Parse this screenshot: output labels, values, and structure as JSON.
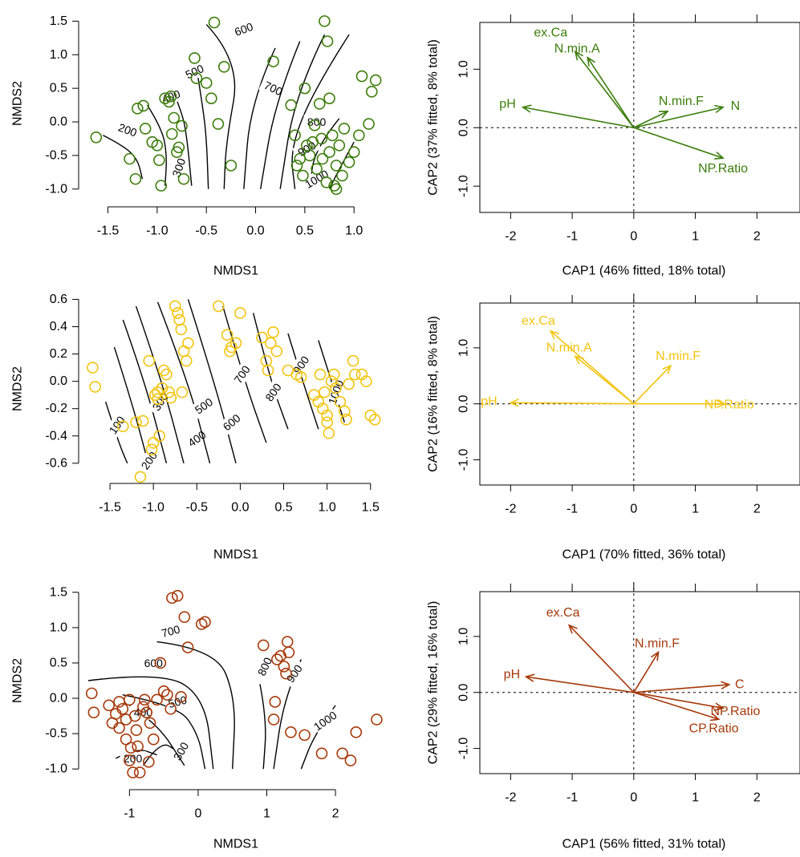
{
  "chart_data": [
    {
      "type": "scatter",
      "panel": "nmds",
      "color": "#3a7d0a",
      "xlabel": "NMDS1",
      "ylabel": "NMDS2",
      "xlim": [
        -1.7,
        1.3
      ],
      "ylim": [
        -1.05,
        1.6
      ],
      "xticks": [
        "-1.5",
        "-1.0",
        "-0.5",
        "0.0",
        "0.5",
        "1.0"
      ],
      "xtick_values": [
        -1.5,
        -1.0,
        -0.5,
        0.0,
        0.5,
        1.0
      ],
      "yticks": [
        "-1.0",
        "-0.5",
        "0.0",
        "0.5",
        "1.0",
        "1.5"
      ],
      "ytick_values": [
        -1.0,
        -0.5,
        0.0,
        0.5,
        1.0,
        1.5
      ],
      "points": [
        [
          -1.62,
          -0.23
        ],
        [
          -1.28,
          -0.55
        ],
        [
          -1.22,
          -0.85
        ],
        [
          -1.2,
          0.2
        ],
        [
          -1.14,
          0.24
        ],
        [
          -1.12,
          -0.1
        ],
        [
          -1.05,
          -0.3
        ],
        [
          -1.0,
          -0.35
        ],
        [
          -0.98,
          -0.57
        ],
        [
          -0.96,
          -0.95
        ],
        [
          -0.92,
          0.35
        ],
        [
          -0.88,
          0.3
        ],
        [
          -0.86,
          0.38
        ],
        [
          -0.85,
          -0.18
        ],
        [
          -0.83,
          0.06
        ],
        [
          -0.8,
          -0.45
        ],
        [
          -0.78,
          -0.38
        ],
        [
          -0.75,
          -0.06
        ],
        [
          -0.73,
          -0.85
        ],
        [
          -0.62,
          0.95
        ],
        [
          -0.6,
          0.65
        ],
        [
          -0.5,
          0.58
        ],
        [
          -0.45,
          0.35
        ],
        [
          -0.42,
          1.48
        ],
        [
          -0.38,
          -0.03
        ],
        [
          -0.32,
          0.82
        ],
        [
          -0.25,
          -0.65
        ],
        [
          0.18,
          0.9
        ],
        [
          0.36,
          0.25
        ],
        [
          0.4,
          -0.2
        ],
        [
          0.42,
          -0.65
        ],
        [
          0.45,
          -0.55
        ],
        [
          0.48,
          -0.8
        ],
        [
          0.5,
          0.5
        ],
        [
          0.52,
          -0.35
        ],
        [
          0.55,
          -0.5
        ],
        [
          0.58,
          -0.3
        ],
        [
          0.6,
          -0.05
        ],
        [
          0.62,
          -0.7
        ],
        [
          0.65,
          0.27
        ],
        [
          0.67,
          -0.25
        ],
        [
          0.68,
          -0.55
        ],
        [
          0.7,
          1.5
        ],
        [
          0.72,
          -0.9
        ],
        [
          0.73,
          1.2
        ],
        [
          0.75,
          -0.45
        ],
        [
          0.75,
          0.35
        ],
        [
          0.78,
          -0.2
        ],
        [
          0.8,
          -0.95
        ],
        [
          0.82,
          -0.65
        ],
        [
          0.82,
          -1.0
        ],
        [
          0.85,
          -0.35
        ],
        [
          0.88,
          -0.8
        ],
        [
          0.9,
          -0.1
        ],
        [
          0.95,
          -0.6
        ],
        [
          1.0,
          -0.45
        ],
        [
          1.05,
          -0.2
        ],
        [
          1.08,
          0.68
        ],
        [
          1.15,
          -0.03
        ],
        [
          1.18,
          0.45
        ],
        [
          1.22,
          0.62
        ]
      ],
      "contour_labels": [
        "200",
        "300",
        "400",
        "500",
        "600",
        "700",
        "800",
        "900",
        "1000"
      ]
    },
    {
      "type": "biplot",
      "panel": "cap",
      "color": "#3a7d0a",
      "xlabel": "CAP1 (46% fitted, 18% total)",
      "ylabel": "CAP2 (37% fitted, 8% total)",
      "xlim": [
        -2.5,
        2.7
      ],
      "ylim": [
        -1.45,
        1.8
      ],
      "xticks": [
        "-2",
        "-1",
        "0",
        "1",
        "2"
      ],
      "xtick_values": [
        -2,
        -1,
        0,
        1,
        2
      ],
      "yticks": [
        "-1.0",
        "0.0",
        "1.0"
      ],
      "ytick_values": [
        -1.0,
        0.0,
        1.0
      ],
      "vectors": [
        {
          "label": "ex.Ca",
          "x": -0.95,
          "y": 1.3,
          "lx": -1.35,
          "ly": 1.62
        },
        {
          "label": "N.min.A",
          "x": -0.75,
          "y": 1.2,
          "lx": -0.92,
          "ly": 1.35
        },
        {
          "label": "pH",
          "x": -1.8,
          "y": 0.35,
          "lx": -2.05,
          "ly": 0.4
        },
        {
          "label": "N.min.F",
          "x": 0.55,
          "y": 0.28,
          "lx": 0.77,
          "ly": 0.45
        },
        {
          "label": "N",
          "x": 1.45,
          "y": 0.35,
          "lx": 1.65,
          "ly": 0.37
        },
        {
          "label": "NP.Ratio",
          "x": 1.45,
          "y": -0.52,
          "lx": 1.45,
          "ly": -0.7
        }
      ]
    },
    {
      "type": "scatter",
      "panel": "nmds",
      "color": "#f2c40f",
      "xlabel": "NMDS1",
      "ylabel": "NMDS2",
      "xlim": [
        -1.75,
        1.65
      ],
      "ylim": [
        -0.73,
        0.62
      ],
      "xticks": [
        "-1.5",
        "-1.0",
        "-0.5",
        "0.0",
        "0.5",
        "1.0",
        "1.5"
      ],
      "xtick_values": [
        -1.5,
        -1.0,
        -0.5,
        0.0,
        0.5,
        1.0,
        1.5
      ],
      "yticks": [
        "-0.6",
        "-0.4",
        "-0.2",
        "0.0",
        "0.2",
        "0.4",
        "0.6"
      ],
      "ytick_values": [
        -0.6,
        -0.4,
        -0.2,
        0.0,
        0.2,
        0.4,
        0.6
      ],
      "points": [
        [
          -1.7,
          0.1
        ],
        [
          -1.67,
          -0.04
        ],
        [
          -1.35,
          -0.33
        ],
        [
          -1.2,
          -0.3
        ],
        [
          -1.15,
          -0.7
        ],
        [
          -1.12,
          -0.29
        ],
        [
          -1.05,
          0.15
        ],
        [
          -1.02,
          -0.5
        ],
        [
          -1.0,
          -0.45
        ],
        [
          -0.98,
          -0.1
        ],
        [
          -0.95,
          -0.08
        ],
        [
          -0.95,
          -0.13
        ],
        [
          -0.93,
          -0.4
        ],
        [
          -0.9,
          -0.05
        ],
        [
          -0.88,
          0.08
        ],
        [
          -0.85,
          0.05
        ],
        [
          -0.82,
          -0.08
        ],
        [
          -0.8,
          -0.12
        ],
        [
          -0.75,
          0.55
        ],
        [
          -0.72,
          0.5
        ],
        [
          -0.7,
          0.45
        ],
        [
          -0.68,
          0.38
        ],
        [
          -0.67,
          -0.08
        ],
        [
          -0.65,
          0.22
        ],
        [
          -0.62,
          0.15
        ],
        [
          -0.6,
          0.28
        ],
        [
          -0.25,
          0.55
        ],
        [
          -0.15,
          0.34
        ],
        [
          -0.12,
          0.22
        ],
        [
          -0.1,
          0.25
        ],
        [
          -0.05,
          0.28
        ],
        [
          0.0,
          0.5
        ],
        [
          0.25,
          0.32
        ],
        [
          0.3,
          0.15
        ],
        [
          0.32,
          0.08
        ],
        [
          0.35,
          0.28
        ],
        [
          0.38,
          0.36
        ],
        [
          0.42,
          0.22
        ],
        [
          0.55,
          0.08
        ],
        [
          0.65,
          0.05
        ],
        [
          0.7,
          0.03
        ],
        [
          0.85,
          -0.1
        ],
        [
          0.9,
          -0.15
        ],
        [
          0.92,
          0.05
        ],
        [
          0.95,
          -0.2
        ],
        [
          0.97,
          -0.08
        ],
        [
          1.0,
          -0.25
        ],
        [
          1.0,
          -0.3
        ],
        [
          1.02,
          -0.38
        ],
        [
          1.05,
          0.0
        ],
        [
          1.08,
          0.05
        ],
        [
          1.1,
          -0.05
        ],
        [
          1.15,
          -0.15
        ],
        [
          1.2,
          -0.22
        ],
        [
          1.22,
          -0.28
        ],
        [
          1.25,
          -0.02
        ],
        [
          1.3,
          0.15
        ],
        [
          1.32,
          0.05
        ],
        [
          1.4,
          0.05
        ],
        [
          1.45,
          0.0
        ],
        [
          1.5,
          -0.25
        ],
        [
          1.55,
          -0.28
        ]
      ],
      "contour_labels": [
        "100",
        "200",
        "300",
        "400",
        "500",
        "600",
        "700",
        "800",
        "900",
        "1000"
      ]
    },
    {
      "type": "biplot",
      "panel": "cap",
      "color": "#f2c40f",
      "xlabel": "CAP1 (70% fitted, 36% total)",
      "ylabel": "CAP2 (16% fitted, 8% total)",
      "xlim": [
        -2.5,
        2.7
      ],
      "ylim": [
        -1.45,
        1.8
      ],
      "xticks": [
        "-2",
        "-1",
        "0",
        "1",
        "2"
      ],
      "xtick_values": [
        -2,
        -1,
        0,
        1,
        2
      ],
      "yticks": [
        "-1.0",
        "0.0",
        "1.0"
      ],
      "ytick_values": [
        -1.0,
        0.0,
        1.0
      ],
      "vectors": [
        {
          "label": "ex.Ca",
          "x": -1.35,
          "y": 1.3,
          "lx": -1.55,
          "ly": 1.48
        },
        {
          "label": "N.min.A",
          "x": -0.95,
          "y": 0.85,
          "lx": -1.05,
          "ly": 1.0
        },
        {
          "label": "N.min.F",
          "x": 0.6,
          "y": 0.68,
          "lx": 0.72,
          "ly": 0.85
        },
        {
          "label": "pH",
          "x": -2.0,
          "y": 0.02,
          "lx": -2.35,
          "ly": 0.04
        },
        {
          "label": "NP.Ratio",
          "x": 1.48,
          "y": 0.0,
          "lx": 1.55,
          "ly": -0.02
        }
      ]
    },
    {
      "type": "scatter",
      "panel": "nmds",
      "color": "#a6390a",
      "xlabel": "NMDS1",
      "ylabel": "NMDS2",
      "xlim": [
        -1.6,
        2.7
      ],
      "ylim": [
        -1.1,
        1.6
      ],
      "xticks": [
        "-1",
        "0",
        "1",
        "2"
      ],
      "xtick_values": [
        -1,
        0,
        1,
        2
      ],
      "yticks": [
        "-1.0",
        "-0.5",
        "0.0",
        "0.5",
        "1.0",
        "1.5"
      ],
      "ytick_values": [
        -1.0,
        -0.5,
        0.0,
        0.5,
        1.0,
        1.5
      ],
      "points": [
        [
          -1.55,
          0.07
        ],
        [
          -1.52,
          -0.2
        ],
        [
          -1.3,
          -0.1
        ],
        [
          -1.25,
          -0.35
        ],
        [
          -1.2,
          -0.22
        ],
        [
          -1.15,
          -0.05
        ],
        [
          -1.15,
          -0.42
        ],
        [
          -1.1,
          -0.15
        ],
        [
          -1.05,
          -0.3
        ],
        [
          -1.05,
          -0.58
        ],
        [
          -1.0,
          -0.02
        ],
        [
          -1.0,
          -0.88
        ],
        [
          -0.98,
          -0.7
        ],
        [
          -0.95,
          -1.05
        ],
        [
          -0.92,
          -0.25
        ],
        [
          -0.9,
          -0.45
        ],
        [
          -0.88,
          -0.68
        ],
        [
          -0.85,
          -1.05
        ],
        [
          -0.8,
          -0.12
        ],
        [
          -0.78,
          -0.02
        ],
        [
          -0.75,
          -0.2
        ],
        [
          -0.72,
          -0.9
        ],
        [
          -0.7,
          -0.35
        ],
        [
          -0.65,
          -0.58
        ],
        [
          -0.6,
          -0.02
        ],
        [
          -0.55,
          0.5
        ],
        [
          -0.5,
          0.1
        ],
        [
          -0.45,
          0.05
        ],
        [
          -0.4,
          -0.15
        ],
        [
          -0.38,
          1.42
        ],
        [
          -0.3,
          1.45
        ],
        [
          -0.25,
          0.02
        ],
        [
          -0.2,
          1.15
        ],
        [
          -0.15,
          0.72
        ],
        [
          0.05,
          1.05
        ],
        [
          0.1,
          1.08
        ],
        [
          0.95,
          0.75
        ],
        [
          1.1,
          -0.3
        ],
        [
          1.12,
          -0.05
        ],
        [
          1.15,
          0.55
        ],
        [
          1.2,
          0.6
        ],
        [
          1.25,
          0.45
        ],
        [
          1.28,
          0.35
        ],
        [
          1.3,
          0.8
        ],
        [
          1.32,
          0.65
        ],
        [
          1.35,
          -0.48
        ],
        [
          1.55,
          -0.52
        ],
        [
          1.8,
          -0.78
        ],
        [
          2.1,
          -0.78
        ],
        [
          2.22,
          -0.88
        ],
        [
          2.3,
          -0.48
        ],
        [
          2.6,
          -0.3
        ]
      ],
      "contour_labels": [
        "200",
        "300",
        "400",
        "500",
        "600",
        "700",
        "800",
        "900",
        "1000"
      ]
    },
    {
      "type": "biplot",
      "panel": "cap",
      "color": "#a6390a",
      "xlabel": "CAP1 (56% fitted, 31% total)",
      "ylabel": "CAP2 (29% fitted, 16% total)",
      "xlim": [
        -2.5,
        2.7
      ],
      "ylim": [
        -1.45,
        1.8
      ],
      "xticks": [
        "-2",
        "-1",
        "0",
        "1",
        "2"
      ],
      "xtick_values": [
        -2,
        -1,
        0,
        1,
        2
      ],
      "yticks": [
        "-1.0",
        "0.0",
        "1.0"
      ],
      "ytick_values": [
        -1.0,
        0.0,
        1.0
      ],
      "vectors": [
        {
          "label": "ex.Ca",
          "x": -1.05,
          "y": 1.2,
          "lx": -1.15,
          "ly": 1.42
        },
        {
          "label": "N.min.F",
          "x": 0.4,
          "y": 0.72,
          "lx": 0.38,
          "ly": 0.87
        },
        {
          "label": "pH",
          "x": -1.75,
          "y": 0.28,
          "lx": -1.98,
          "ly": 0.32
        },
        {
          "label": "C",
          "x": 1.55,
          "y": 0.14,
          "lx": 1.72,
          "ly": 0.14
        },
        {
          "label": "NP.Ratio",
          "x": 1.45,
          "y": -0.28,
          "lx": 1.65,
          "ly": -0.34
        },
        {
          "label": "CP.Ratio",
          "x": 1.38,
          "y": -0.48,
          "lx": 1.3,
          "ly": -0.65
        }
      ]
    }
  ]
}
